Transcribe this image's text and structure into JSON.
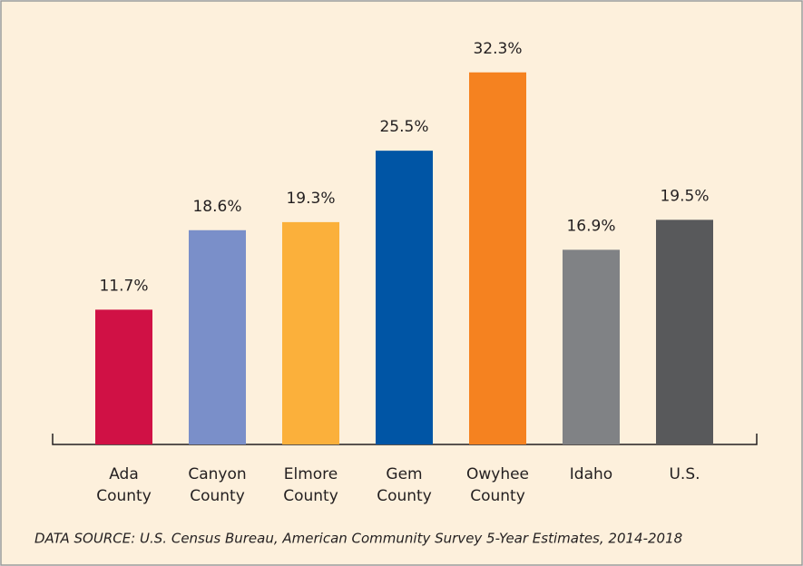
{
  "chart_data": {
    "type": "bar",
    "categories": [
      "Ada County",
      "Canyon County",
      "Elmore County",
      "Gem County",
      "Owyhee County",
      "Idaho",
      "U.S."
    ],
    "values": [
      11.7,
      18.6,
      19.3,
      25.5,
      32.3,
      16.9,
      19.5
    ],
    "value_labels": [
      "11.7%",
      "18.6%",
      "19.3%",
      "25.5%",
      "32.3%",
      "16.9%",
      "19.5%"
    ],
    "colors": [
      "#d01145",
      "#7a8fc9",
      "#fbb03b",
      "#0055a5",
      "#f58220",
      "#808285",
      "#58595b"
    ],
    "source": "DATA SOURCE: U.S. Census Bureau, American Community Survey 5-Year Estimates, 2014-2018"
  }
}
